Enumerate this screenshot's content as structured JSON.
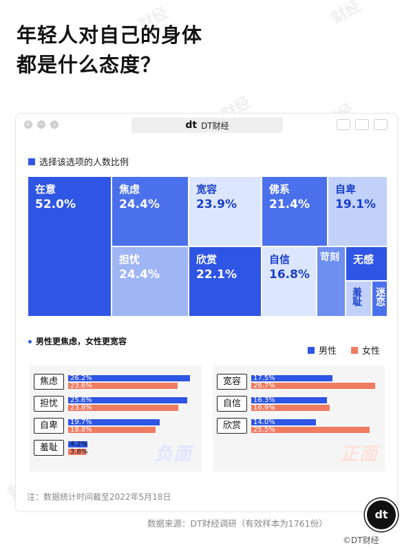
{
  "title_line1": "年轻人对自己的身体",
  "title_line2": "都是什么态度？",
  "watermark": "财经",
  "window": {
    "address_logo": "dt",
    "address_text": "DT财经"
  },
  "colors": {
    "primary": "#2f55e4",
    "male": "#2f55e4",
    "female": "#ef7b61",
    "light": "#dde6ff"
  },
  "chart_data": [
    {
      "type": "heatmap",
      "legend": "选择该选项的人数比例",
      "unit": "%",
      "items": [
        {
          "label": "在意",
          "value": 52.0,
          "value_text": "52.0%"
        },
        {
          "label": "焦虑",
          "value": 24.4,
          "value_text": "24.4%"
        },
        {
          "label": "担忧",
          "value": 24.4,
          "value_text": "24.4%"
        },
        {
          "label": "宽容",
          "value": 23.9,
          "value_text": "23.9%"
        },
        {
          "label": "欣赏",
          "value": 22.1,
          "value_text": "22.1%"
        },
        {
          "label": "佛系",
          "value": 21.4,
          "value_text": "21.4%"
        },
        {
          "label": "自卑",
          "value": 19.1,
          "value_text": "19.1%"
        },
        {
          "label": "自信",
          "value": 16.8,
          "value_text": "16.8%"
        },
        {
          "label": "苛刻",
          "value": null,
          "value_text": ""
        },
        {
          "label": "无感",
          "value": null,
          "value_text": ""
        },
        {
          "label": "羞耻",
          "value": null,
          "value_text": ""
        },
        {
          "label": "迷恋",
          "value": null,
          "value_text": ""
        }
      ]
    },
    {
      "type": "bar",
      "title": "男性更焦虑，女性更宽容",
      "panel_label": "负面",
      "categories": [
        "焦虑",
        "担忧",
        "自卑",
        "羞耻"
      ],
      "series": [
        {
          "name": "男性",
          "values": [
            26.2,
            25.6,
            19.7,
            4.2
          ],
          "labels": [
            "26.2%",
            "25.6%",
            "19.7%",
            "4.2%"
          ]
        },
        {
          "name": "女性",
          "values": [
            23.6,
            23.8,
            18.8,
            3.8
          ],
          "labels": [
            "23.6%",
            "23.8%",
            "18.8%",
            "3.8%"
          ]
        }
      ],
      "xlim": [
        0,
        30
      ]
    },
    {
      "type": "bar",
      "panel_label": "正面",
      "categories": [
        "宽容",
        "自信",
        "欣赏"
      ],
      "series": [
        {
          "name": "男性",
          "values": [
            17.5,
            16.3,
            14.0
          ],
          "labels": [
            "17.5%",
            "16.3%",
            "14.0%"
          ]
        },
        {
          "name": "女性",
          "values": [
            26.7,
            16.9,
            25.5
          ],
          "labels": [
            "26.7%",
            "16.9%",
            "25.5%"
          ]
        }
      ],
      "xlim": [
        0,
        30
      ]
    }
  ],
  "note": "注：数据统计时间截至2022年5月18日",
  "source": "数据来源：DT财经调研（有效样本为1761份）",
  "badge": "dt",
  "footer": "©DT财经"
}
